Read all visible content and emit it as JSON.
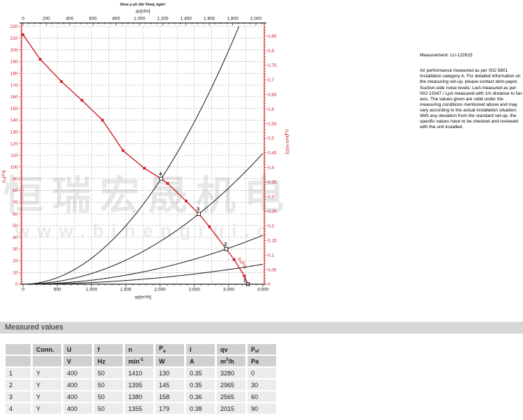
{
  "watermark": {
    "line1": "恒瑞宏晟机电",
    "line2": "www.bihengrui.c"
  },
  "measurement_label": "Measurement: LU-122615",
  "notes": "Air performance measured as per ISO 5801 Installation category A. For detailed information on the measuring set-up, please contact ebm-papst. Suction-side noise levels: LwA measured as per ISO 13347 / LpA measured with 1m distance to fan axis. The values given are valid under the measuring conditions mentioned above and may vary according to the actual installation situation. With any deviation from the standard set-up, the specific values have to be checked and reviewed with the unit installed.",
  "section_title": "Measured values",
  "table": {
    "headers": [
      "",
      "Conn.",
      "U",
      "f",
      "n",
      [
        "P",
        {
          "sub": "e"
        }
      ],
      "I",
      "qv",
      [
        "p",
        {
          "sub": "sf"
        }
      ]
    ],
    "units": [
      "",
      "",
      "V",
      "Hz",
      [
        "min",
        {
          "sup": "-1"
        }
      ],
      "W",
      "A",
      [
        "m",
        {
          "sup": "3"
        },
        "/h"
      ],
      "Pa"
    ],
    "rows": [
      [
        "1",
        "Y",
        "400",
        "50",
        "1410",
        "130",
        "0.35",
        "3280",
        "0"
      ],
      [
        "2",
        "Y",
        "400",
        "50",
        "1395",
        "145",
        "0.35",
        "2965",
        "30"
      ],
      [
        "3",
        "Y",
        "400",
        "50",
        "1380",
        "158",
        "0.36",
        "2565",
        "60"
      ],
      [
        "4",
        "Y",
        "400",
        "50",
        "1355",
        "179",
        "0.38",
        "2015",
        "90"
      ]
    ]
  },
  "chart_data": {
    "type": "line",
    "title": "Dens ρ-qV (Air Flow), kg/m³",
    "axes": {
      "top": {
        "label": "qv[cfm]",
        "tick_step": 200,
        "minor_step": 50,
        "max": 2060,
        "m3h_per_cfm": 1.699
      },
      "bottom": {
        "label": "qv[m³/h]",
        "range": [
          0,
          3500
        ],
        "major_step": 500,
        "minor_step": 100,
        "grid_step": 250
      },
      "left": {
        "label_main": "p",
        "label_sub": "sf",
        "label_rest": "[Pa]",
        "range": [
          0,
          220
        ],
        "major_step": 10,
        "minor_step": 2
      },
      "right": {
        "label_main": "p",
        "label_sub": "sf",
        "label_rest": "[inch H2O]",
        "label_step": 0.05,
        "minor_step": 0.01,
        "max_label": 0.85,
        "pa_per_inch": 249.089
      }
    },
    "fan_curve": {
      "name": "psf[Pa]",
      "color": "#cf2027",
      "points": [
        [
          0,
          213
        ],
        [
          250,
          192
        ],
        [
          560,
          173
        ],
        [
          860,
          157
        ],
        [
          1160,
          140
        ],
        [
          1460,
          114
        ],
        [
          1770,
          99
        ],
        [
          2015,
          90
        ],
        [
          2110,
          86
        ],
        [
          2380,
          71
        ],
        [
          2565,
          60
        ],
        [
          2720,
          49
        ],
        [
          2965,
          30
        ],
        [
          3080,
          21
        ],
        [
          3230,
          7
        ],
        [
          3280,
          0
        ]
      ],
      "marker_points": [
        [
          0,
          213
        ],
        [
          250,
          192
        ],
        [
          560,
          173
        ],
        [
          860,
          157
        ],
        [
          1160,
          140
        ],
        [
          1460,
          114
        ],
        [
          1770,
          99
        ],
        [
          2110,
          86
        ],
        [
          2380,
          71
        ],
        [
          2720,
          49
        ],
        [
          3080,
          21
        ],
        [
          3230,
          7
        ]
      ],
      "curve_label": {
        "text_main": "p",
        "text_sub": "sf",
        "text_rest": "[Pa]",
        "q": 3140,
        "p": 22,
        "angle": 57
      }
    },
    "system_curves": [
      {
        "name": "system-curve-4",
        "ref": [
          2015,
          90
        ]
      },
      {
        "name": "system-curve-3",
        "ref": [
          2565,
          60
        ]
      },
      {
        "name": "system-curve-2",
        "ref": [
          2965,
          30
        ]
      },
      {
        "name": "system-curve-1",
        "ref": [
          3500,
          17
        ]
      }
    ],
    "operating_points": [
      {
        "label": "1",
        "q": 3280,
        "p": 0
      },
      {
        "label": "2",
        "q": 2965,
        "p": 30
      },
      {
        "label": "3",
        "q": 2565,
        "p": 60
      },
      {
        "label": "4",
        "q": 2015,
        "p": 90
      }
    ],
    "grid": true,
    "colors": {
      "axis_red": "#cf2027",
      "curve_black": "#222222",
      "grid": "#969696"
    }
  }
}
